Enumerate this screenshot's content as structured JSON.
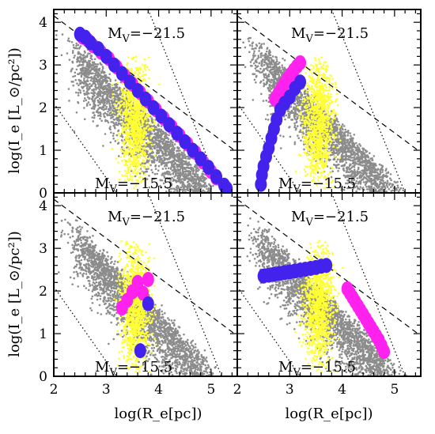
{
  "chart_data": {
    "type": "scatter",
    "layout": "2x2 panels",
    "xlabel": "log(R_e[pc])",
    "ylabel": "log(I_e [L_⊙/pc²])",
    "xlim": [
      2,
      5.5
    ],
    "ylim": [
      0,
      4.3
    ],
    "x_ticks": [
      2,
      3,
      4,
      5
    ],
    "y_ticks": [
      0,
      1,
      2,
      3,
      4
    ],
    "colors": {
      "background_points": "#8c8c8c",
      "selected_points": "#ffff33",
      "track_blue": "#4422ee",
      "track_magenta": "#ff22ee"
    },
    "reference_lines": [
      {
        "style": "dashed",
        "points": [
          [
            2.0,
            4.15
          ],
          [
            5.5,
            0.95
          ]
        ]
      },
      {
        "style": "dotted",
        "points": [
          [
            2.0,
            2.1
          ],
          [
            3.2,
            0.0
          ]
        ]
      },
      {
        "style": "dotted",
        "points": [
          [
            3.8,
            4.3
          ],
          [
            5.2,
            0.0
          ]
        ]
      }
    ],
    "magnitude_labels": [
      "M",
      "V",
      "=−21.5",
      "=−15.5"
    ],
    "panels": [
      {
        "position": "top-left",
        "series": [
          {
            "color": "magenta",
            "x": [
              2.55,
              2.65,
              2.75,
              2.9,
              3.05,
              3.2,
              3.35,
              3.5,
              3.65,
              3.8,
              3.95,
              4.1,
              4.25,
              4.4,
              4.55,
              4.7,
              4.85,
              5.0,
              5.1
            ],
            "y": [
              3.65,
              3.58,
              3.45,
              3.3,
              3.15,
              2.95,
              2.75,
              2.55,
              2.35,
              2.15,
              1.95,
              1.75,
              1.55,
              1.35,
              1.15,
              0.95,
              0.72,
              0.5,
              0.35
            ]
          },
          {
            "color": "blue",
            "x": [
              2.5,
              2.6,
              2.7,
              2.85,
              3.0,
              3.15,
              3.3,
              3.45,
              3.6,
              3.75,
              3.9,
              4.05,
              4.2,
              4.35,
              4.5,
              4.65,
              4.8,
              4.95,
              5.1,
              5.25,
              5.3
            ],
            "y": [
              3.72,
              3.65,
              3.52,
              3.38,
              3.2,
              3.0,
              2.8,
              2.6,
              2.4,
              2.2,
              2.0,
              1.8,
              1.6,
              1.4,
              1.2,
              1.0,
              0.8,
              0.6,
              0.38,
              0.18,
              0.1
            ]
          }
        ]
      },
      {
        "position": "top-right",
        "series": [
          {
            "color": "magenta",
            "x": [
              2.72,
              2.78,
              2.84,
              2.9,
              2.96,
              3.02,
              3.08,
              3.14,
              3.2
            ],
            "y": [
              2.2,
              2.32,
              2.45,
              2.57,
              2.68,
              2.78,
              2.88,
              2.97,
              3.05
            ]
          },
          {
            "color": "blue",
            "x": [
              2.45,
              2.47,
              2.5,
              2.55,
              2.6,
              2.65,
              2.7,
              2.75,
              2.82,
              2.9,
              3.0,
              3.1,
              3.2
            ],
            "y": [
              0.2,
              0.42,
              0.62,
              0.85,
              1.05,
              1.28,
              1.5,
              1.72,
              1.95,
              2.1,
              2.25,
              2.45,
              2.6
            ]
          }
        ]
      },
      {
        "position": "bottom-left",
        "series": [
          {
            "color": "magenta",
            "x": [
              3.3,
              3.4,
              3.5,
              3.6,
              3.7,
              3.8
            ],
            "y": [
              1.6,
              1.78,
              1.98,
              2.2,
              1.95,
              2.27
            ]
          },
          {
            "color": "blue",
            "x": [
              3.65,
              3.8
            ],
            "y": [
              0.6,
              1.7
            ]
          }
        ]
      },
      {
        "position": "bottom-right",
        "series": [
          {
            "color": "blue",
            "x": [
              2.5,
              2.6,
              2.7,
              2.8,
              2.9,
              3.0,
              3.1,
              3.2,
              3.3,
              3.4,
              3.5,
              3.6,
              3.7
            ],
            "y": [
              2.35,
              2.37,
              2.39,
              2.41,
              2.43,
              2.45,
              2.47,
              2.49,
              2.51,
              2.53,
              2.55,
              2.58,
              2.6
            ]
          },
          {
            "color": "magenta",
            "x": [
              4.1,
              4.15,
              4.2,
              4.25,
              4.3,
              4.35,
              4.4,
              4.45,
              4.5,
              4.55,
              4.6,
              4.65,
              4.7,
              4.75,
              4.8
            ],
            "y": [
              2.05,
              1.95,
              1.85,
              1.75,
              1.65,
              1.55,
              1.45,
              1.35,
              1.25,
              1.15,
              1.05,
              0.95,
              0.85,
              0.72,
              0.58
            ]
          }
        ]
      }
    ]
  }
}
